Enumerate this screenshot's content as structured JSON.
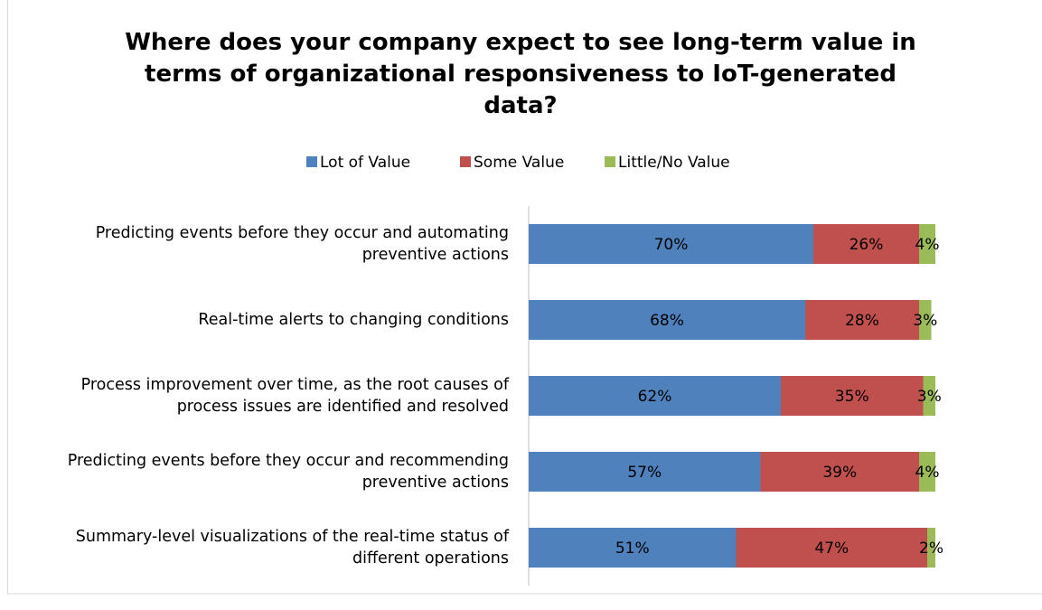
{
  "chart_data": {
    "type": "stacked-bar-horizontal",
    "title": "Where does your company expect to see long-term value in\nterms of organizational responsiveness to IoT-generated\ndata?",
    "categories": [
      "Predicting events before they occur and automating\npreventive actions",
      "Real-time alerts to changing conditions",
      "Process improvement over time, as the root causes of\nprocess issues are identified and resolved",
      "Predicting events before they occur and recommending\npreventive actions",
      "Summary-level visualizations of the real-time status of\ndifferent operations"
    ],
    "series": [
      {
        "name": "Lot of Value",
        "color": "#4f81bd",
        "values": [
          70,
          68,
          62,
          57,
          51
        ],
        "value_labels": [
          "70%",
          "68%",
          "62%",
          "57%",
          "51%"
        ]
      },
      {
        "name": "Some Value",
        "color": "#c0504d",
        "values": [
          26,
          28,
          35,
          39,
          47
        ],
        "value_labels": [
          "26%",
          "28%",
          "35%",
          "39%",
          "47%"
        ]
      },
      {
        "name": "Little/No Value",
        "color": "#9bbb59",
        "values": [
          4,
          3,
          3,
          4,
          2
        ],
        "value_labels": [
          "4%",
          "3%",
          "3%",
          "4%",
          "2%"
        ]
      }
    ],
    "legend": "top"
  }
}
